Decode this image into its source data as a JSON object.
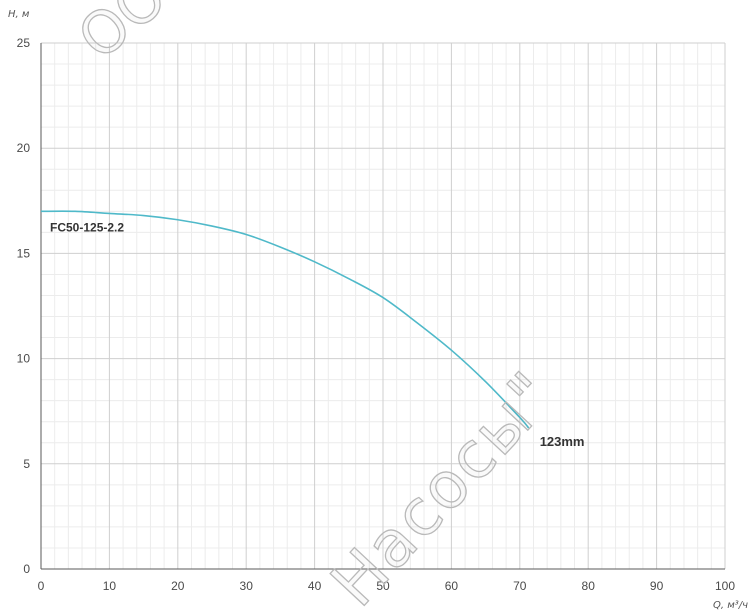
{
  "chart_data": {
    "type": "line",
    "ylabel": "H, м",
    "xlabel": "Q, м³/ч",
    "xlim": [
      0,
      100
    ],
    "ylim": [
      0,
      25
    ],
    "xticks": [
      0,
      10,
      20,
      30,
      40,
      50,
      60,
      70,
      80,
      90,
      100
    ],
    "yticks": [
      0,
      5,
      10,
      15,
      20,
      25
    ],
    "grid": true,
    "minor_grid_step": {
      "x": 2,
      "y": 1
    },
    "series": [
      {
        "name": "FC50-125-2.2",
        "annotation": "123mm",
        "color": "#4fb9c9",
        "x": [
          0,
          5,
          10,
          15,
          20,
          25,
          30,
          35,
          40,
          45,
          50,
          55,
          60,
          65,
          70,
          71.3
        ],
        "y": [
          17.0,
          17.0,
          16.9,
          16.8,
          16.6,
          16.3,
          15.9,
          15.3,
          14.6,
          13.8,
          12.9,
          11.7,
          10.4,
          8.9,
          7.2,
          6.7
        ]
      }
    ]
  },
  "watermark": {
    "top_fragment": "ОО",
    "bottom_fragment": "Насосы\""
  }
}
